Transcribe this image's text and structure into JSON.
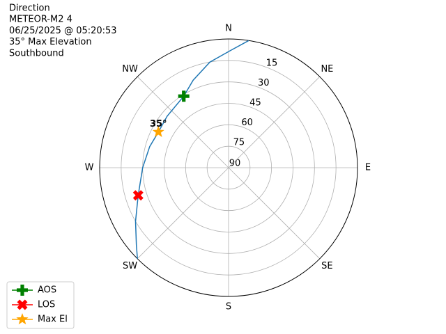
{
  "chart_data": {
    "type": "polar",
    "title_lines": [
      "Direction",
      "METEOR-M2 4",
      "06/25/2025 @ 05:20:53",
      "35° Max Elevation",
      "Southbound"
    ],
    "theta_ticks": [
      {
        "value": 0,
        "label": "N"
      },
      {
        "value": 45,
        "label": "NE"
      },
      {
        "value": 90,
        "label": "E"
      },
      {
        "value": 135,
        "label": "SE"
      },
      {
        "value": 180,
        "label": "S"
      },
      {
        "value": 225,
        "label": "SW"
      },
      {
        "value": 270,
        "label": "W"
      },
      {
        "value": 315,
        "label": "NW"
      }
    ],
    "rlim": [
      90,
      0
    ],
    "rticks": [
      90,
      75,
      60,
      45,
      30,
      15
    ],
    "grid": true,
    "track": {
      "color": "#1f77b4",
      "azimuth": [
        9,
        1,
        350,
        338,
        328,
        310,
        297,
        285,
        270,
        253,
        240,
        230,
        225
      ],
      "elevation": [
        0,
        8,
        15,
        24,
        31,
        34,
        35,
        33,
        30,
        24,
        15,
        6,
        0
      ]
    },
    "series": [
      {
        "name": "AOS",
        "color": "#008000",
        "marker": "plus",
        "azimuth": 328,
        "elevation": 31
      },
      {
        "name": "LOS",
        "color": "#ff0000",
        "marker": "x",
        "azimuth": 253,
        "elevation": 24
      },
      {
        "name": "Max El",
        "color": "#ffa500",
        "marker": "star",
        "azimuth": 297,
        "elevation": 35
      }
    ],
    "annotation": "35°",
    "legend": "lower left"
  }
}
